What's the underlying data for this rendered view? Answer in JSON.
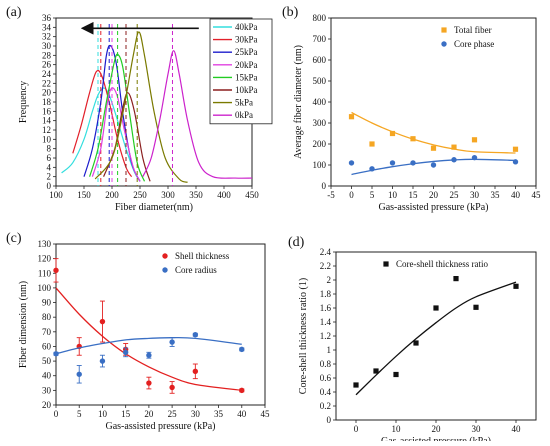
{
  "chart_data": [
    {
      "panel": "(a)",
      "type": "line",
      "xlabel": "Fiber diameter(nm)",
      "ylabel": "Frequency",
      "xlim": [
        100,
        450
      ],
      "ylim": [
        0,
        36
      ],
      "xticks": [
        100,
        150,
        200,
        250,
        300,
        350,
        400,
        450
      ],
      "yticks": [
        0,
        2,
        4,
        6,
        8,
        10,
        12,
        14,
        16,
        18,
        20,
        22,
        24,
        26,
        28,
        30,
        32,
        34,
        36
      ],
      "legend_position": "right",
      "arrow": "right-to-left",
      "series": [
        {
          "name": "40kPa",
          "color": "#33dede",
          "curve": [
            [
              110,
              2.8
            ],
            [
              130,
              5
            ],
            [
              150,
              10
            ],
            [
              165,
              16
            ],
            [
              175,
              19.5
            ],
            [
              185,
              21
            ],
            [
              195,
              19.5
            ],
            [
              210,
              14
            ],
            [
              225,
              8
            ],
            [
              240,
              3
            ],
            [
              250,
              1
            ]
          ],
          "dashed_mean": 175
        },
        {
          "name": "30kPa",
          "color": "#e2202a",
          "curve": [
            [
              130,
              7
            ],
            [
              145,
              13
            ],
            [
              160,
              20
            ],
            [
              172,
              24.5
            ],
            [
              182,
              23.5
            ],
            [
              195,
              18
            ],
            [
              210,
              10
            ],
            [
              225,
              4
            ],
            [
              235,
              2
            ]
          ],
          "dashed_mean": 180
        },
        {
          "name": "25kPa",
          "color": "#1b1bcc",
          "curve": [
            [
              150,
              2
            ],
            [
              165,
              8
            ],
            [
              180,
              18
            ],
            [
              190,
              28
            ],
            [
              198,
              30
            ],
            [
              208,
              26
            ],
            [
              220,
              15
            ],
            [
              235,
              5
            ],
            [
              250,
              1
            ]
          ],
          "dashed_mean": 195
        },
        {
          "name": "20kPa",
          "color": "#e040e0",
          "curve": [
            [
              165,
              2
            ],
            [
              180,
              8
            ],
            [
              192,
              18
            ],
            [
              200,
              21
            ],
            [
              210,
              19
            ],
            [
              222,
              12
            ],
            [
              238,
              4
            ],
            [
              250,
              1
            ]
          ],
          "dashed_mean": 200
        },
        {
          "name": "15kPa",
          "color": "#22cc22",
          "curve": [
            [
              160,
              2
            ],
            [
              175,
              8
            ],
            [
              190,
              18
            ],
            [
              205,
              27
            ],
            [
              212,
              28
            ],
            [
              220,
              25
            ],
            [
              232,
              15
            ],
            [
              245,
              5
            ],
            [
              258,
              1
            ]
          ],
          "dashed_mean": 210
        },
        {
          "name": "10kPa",
          "color": "#8b1f1f",
          "curve": [
            [
              185,
              2
            ],
            [
              205,
              8
            ],
            [
              218,
              16
            ],
            [
              228,
              20
            ],
            [
              240,
              16
            ],
            [
              255,
              6
            ],
            [
              268,
              1
            ]
          ],
          "dashed_mean": 225
        },
        {
          "name": "5kPa",
          "color": "#7a7a00",
          "curve": [
            [
              170,
              1.5
            ],
            [
              200,
              6
            ],
            [
              220,
              16
            ],
            [
              238,
              28
            ],
            [
              248,
              33
            ],
            [
              258,
              28
            ],
            [
              275,
              16
            ],
            [
              295,
              6
            ],
            [
              320,
              1.5
            ],
            [
              335,
              0.8
            ]
          ],
          "dashed_mean": 245
        },
        {
          "name": "0kPa",
          "color": "#cc22cc",
          "curve": [
            [
              255,
              2
            ],
            [
              270,
              6
            ],
            [
              285,
              14
            ],
            [
              300,
              24
            ],
            [
              310,
              29
            ],
            [
              320,
              24
            ],
            [
              335,
              14
            ],
            [
              355,
              5
            ],
            [
              380,
              2
            ],
            [
              420,
              1.7
            ],
            [
              450,
              1.7
            ]
          ],
          "dashed_mean": 308
        }
      ]
    },
    {
      "panel": "(b)",
      "type": "scatter",
      "xlabel": "Gas-assisted pressure (kPa)",
      "ylabel": "Average fiber diameter (nm)",
      "xlim": [
        -5,
        45
      ],
      "ylim": [
        0,
        800
      ],
      "xticks": [
        -5,
        0,
        5,
        10,
        15,
        20,
        25,
        30,
        35,
        40,
        45
      ],
      "yticks": [
        0,
        100,
        200,
        300,
        400,
        500,
        600,
        700,
        800
      ],
      "legend_position": "top-right",
      "series": [
        {
          "name": "Total fiber",
          "color": "#f5a623",
          "marker": "square",
          "x": [
            0,
            5,
            10,
            15,
            20,
            25,
            30,
            40
          ],
          "y": [
            330,
            200,
            250,
            225,
            180,
            185,
            220,
            175
          ],
          "fit_y": [
            350,
            300,
            258,
            223,
            196,
            176,
            163,
            157
          ]
        },
        {
          "name": "Core phase",
          "color": "#3a6fc4",
          "marker": "circle",
          "x": [
            0,
            5,
            10,
            15,
            20,
            25,
            30,
            40
          ],
          "y": [
            110,
            82,
            110,
            110,
            100,
            125,
            135,
            115
          ],
          "fit_y": [
            55,
            75,
            92,
            106,
            117,
            124,
            127,
            122
          ]
        }
      ]
    },
    {
      "panel": "(c)",
      "type": "scatter",
      "xlabel": "Gas-assisted pressure (kPa)",
      "ylabel": "Fiber dimension (nm)",
      "xlim": [
        0,
        45
      ],
      "ylim": [
        20,
        130
      ],
      "xticks": [
        0,
        5,
        10,
        15,
        20,
        25,
        30,
        35,
        40,
        45
      ],
      "yticks": [
        20,
        30,
        40,
        50,
        60,
        70,
        80,
        90,
        100,
        110,
        120,
        130
      ],
      "legend_position": "top-right",
      "series": [
        {
          "name": "Shell thickness",
          "color": "#e32020",
          "marker": "circle",
          "x": [
            0,
            5,
            10,
            15,
            20,
            25,
            30,
            40
          ],
          "y": [
            112,
            60,
            77,
            58,
            35,
            32,
            43,
            30
          ],
          "err": [
            8,
            6,
            14,
            4,
            4,
            4,
            5,
            1
          ],
          "fit_y": [
            100,
            82,
            67,
            55,
            46,
            39,
            34,
            30
          ]
        },
        {
          "name": "Core radius",
          "color": "#3a6fc4",
          "marker": "circle",
          "x": [
            0,
            5,
            10,
            15,
            20,
            25,
            30,
            40
          ],
          "y": [
            55,
            41,
            50,
            56,
            54,
            63,
            68,
            58
          ],
          "err": [
            1,
            6,
            4,
            3,
            2,
            3,
            1,
            1
          ],
          "fit_y": [
            55,
            59,
            62,
            64.5,
            65.5,
            66,
            65.5,
            61.5
          ]
        }
      ]
    },
    {
      "panel": "(d)",
      "type": "scatter",
      "xlabel": "Gas-assisted pressure (kPa)",
      "ylabel": "Core-shell thickness ratio (1)",
      "xlim": [
        -5,
        45
      ],
      "ylim": [
        0,
        2.4
      ],
      "xticks": [
        0,
        10,
        20,
        30,
        40
      ],
      "yticks": [
        0,
        0.2,
        0.4,
        0.6,
        0.8,
        1.0,
        1.2,
        1.4,
        1.6,
        1.8,
        2.0,
        2.2,
        2.4
      ],
      "ytick_labels": [
        "0",
        "0.2",
        "0.4",
        "0.6",
        "0.8",
        "1",
        "1.2",
        "1.4",
        "1.6",
        "1.8",
        "2",
        "2.2",
        "2.4"
      ],
      "legend_position": "top-right",
      "series": [
        {
          "name": "Core-shell thickness ratio",
          "color": "#111111",
          "marker": "square",
          "x": [
            0,
            5,
            10,
            15,
            20,
            25,
            30,
            40
          ],
          "y": [
            0.5,
            0.7,
            0.65,
            1.1,
            1.6,
            2.02,
            1.61,
            1.91
          ],
          "fit_y": [
            0.36,
            0.64,
            0.91,
            1.16,
            1.39,
            1.6,
            1.76,
            1.97
          ]
        }
      ]
    }
  ]
}
